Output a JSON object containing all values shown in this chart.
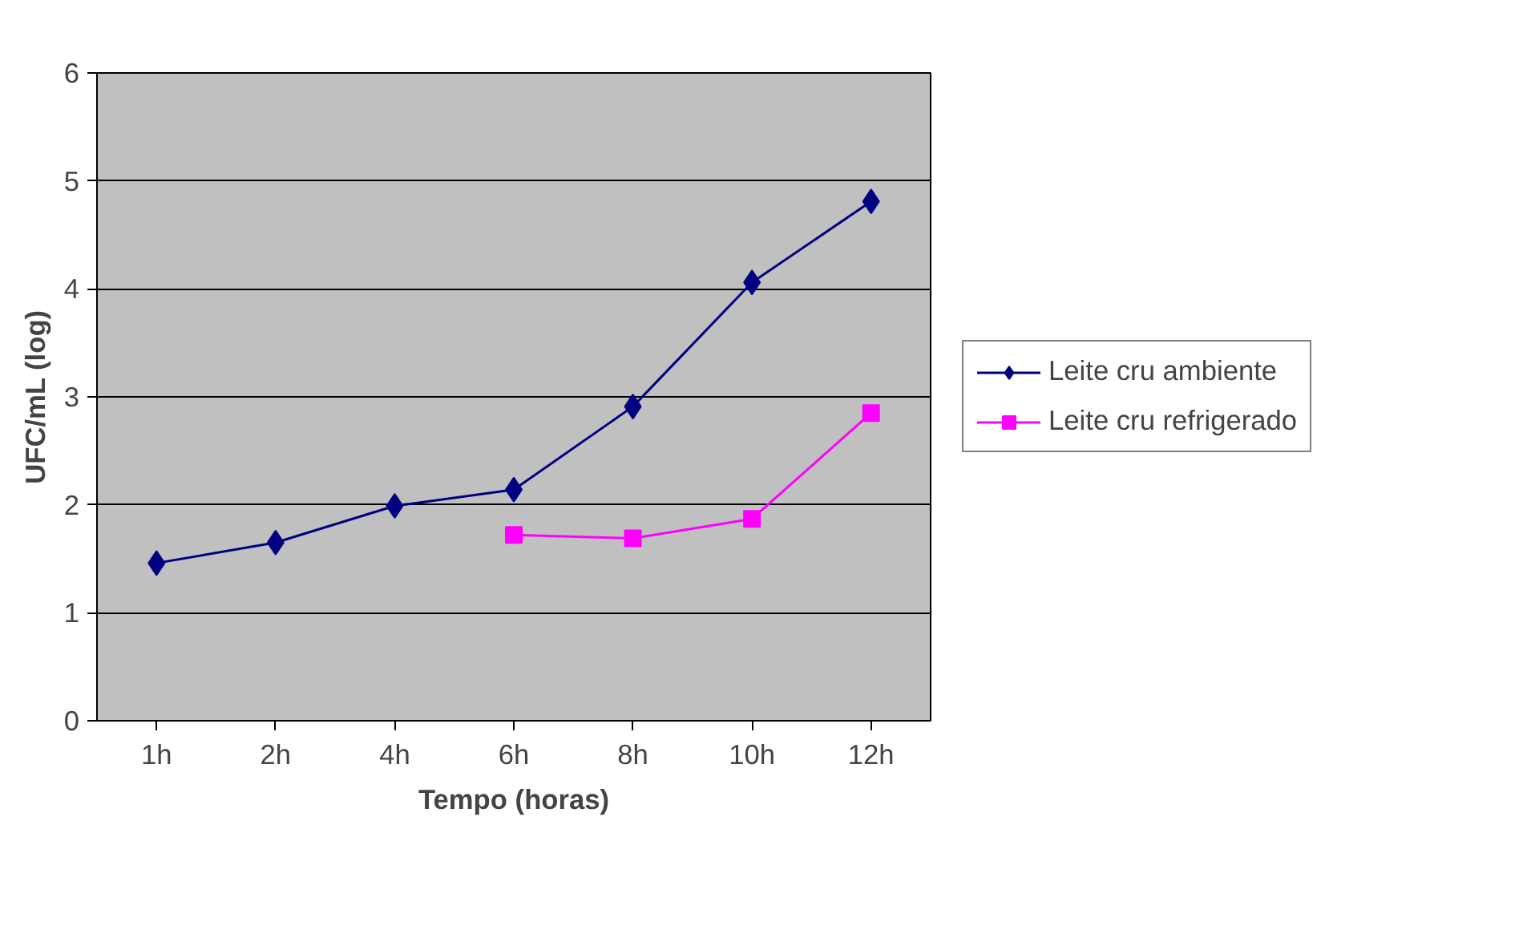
{
  "chart_data": {
    "type": "line",
    "xlabel": "Tempo (horas)",
    "ylabel": "UFC/mL (log)",
    "categories": [
      "1h",
      "2h",
      "4h",
      "6h",
      "8h",
      "10h",
      "12h"
    ],
    "series": [
      {
        "name": "Leite cru ambiente",
        "color": "#000080",
        "marker": "diamond",
        "values": [
          1.46,
          1.65,
          1.99,
          2.14,
          2.91,
          4.06,
          4.81
        ]
      },
      {
        "name": "Leite cru refrigerado",
        "color": "#ff00ff",
        "marker": "square",
        "values": [
          null,
          null,
          null,
          1.72,
          1.69,
          1.87,
          2.85
        ]
      }
    ],
    "ylim": [
      0,
      6
    ],
    "yticks": [
      0,
      1,
      2,
      3,
      4,
      5,
      6
    ],
    "grid": "y",
    "legend": "right",
    "line_style": "solid"
  }
}
